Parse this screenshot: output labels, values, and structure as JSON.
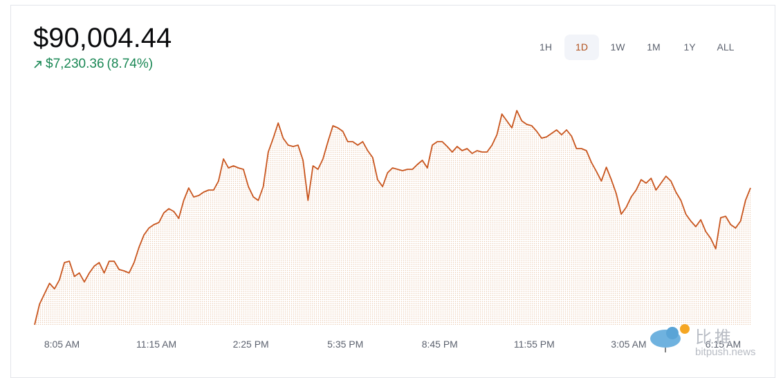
{
  "price": "$90,004.44",
  "change": "$7,230.36",
  "change_percent": "(8.74%)",
  "ranges": [
    "1H",
    "1D",
    "1W",
    "1M",
    "1Y",
    "ALL"
  ],
  "selected_range": 1,
  "watermark": {
    "brand": "比推",
    "site": "bitpush.news"
  },
  "chart_data": {
    "type": "line",
    "color": "#c8541c",
    "fill": "#e9c8ae",
    "xlim": [
      0,
      144
    ],
    "ylim": [
      82774,
      95184
    ],
    "xticks": [
      {
        "value": 5.5,
        "label": "8:05 AM"
      },
      {
        "value": 24.5,
        "label": "11:15 AM"
      },
      {
        "value": 43.5,
        "label": "2:25 PM"
      },
      {
        "value": 62.5,
        "label": "5:35 PM"
      },
      {
        "value": 81.5,
        "label": "8:45 PM"
      },
      {
        "value": 100.5,
        "label": "11:55 PM"
      },
      {
        "value": 119.5,
        "label": "3:05 AM"
      },
      {
        "value": 138.5,
        "label": "6:15 AM"
      }
    ],
    "values": [
      82774,
      83869,
      84417,
      84964,
      84672,
      85147,
      86059,
      86132,
      85329,
      85512,
      85037,
      85512,
      85877,
      86059,
      85512,
      86132,
      86132,
      85694,
      85621,
      85512,
      86059,
      86862,
      87519,
      87884,
      88067,
      88176,
      88687,
      88906,
      88760,
      88395,
      89344,
      90001,
      89527,
      89600,
      89782,
      89892,
      89892,
      90366,
      91534,
      91060,
      91169,
      91060,
      90987,
      90074,
      89527,
      89344,
      90074,
      91899,
      92629,
      93432,
      92629,
      92264,
      92191,
      92264,
      91461,
      89344,
      91169,
      90987,
      91534,
      92447,
      93286,
      93177,
      92994,
      92447,
      92447,
      92264,
      92447,
      91972,
      91607,
      90439,
      90074,
      90804,
      91060,
      90987,
      90914,
      90987,
      90987,
      91242,
      91461,
      91060,
      92264,
      92447,
      92447,
      92191,
      91899,
      92191,
      91972,
      92082,
      91826,
      91972,
      91899,
      91899,
      92264,
      92811,
      93907,
      93542,
      93177,
      94089,
      93542,
      93359,
      93286,
      92994,
      92629,
      92702,
      92885,
      93067,
      92811,
      93067,
      92739,
      92082,
      92082,
      91972,
      91352,
      90877,
      90366,
      91096,
      90439,
      89709,
      88614,
      88979,
      89527,
      89892,
      90439,
      90257,
      90512,
      89892,
      90257,
      90622,
      90366,
      89782,
      89344,
      88614,
      88249,
      87957,
      88322,
      87702,
      87337,
      86789,
      88432,
      88505,
      88067,
      87884,
      88249,
      89344,
      90004
    ]
  }
}
